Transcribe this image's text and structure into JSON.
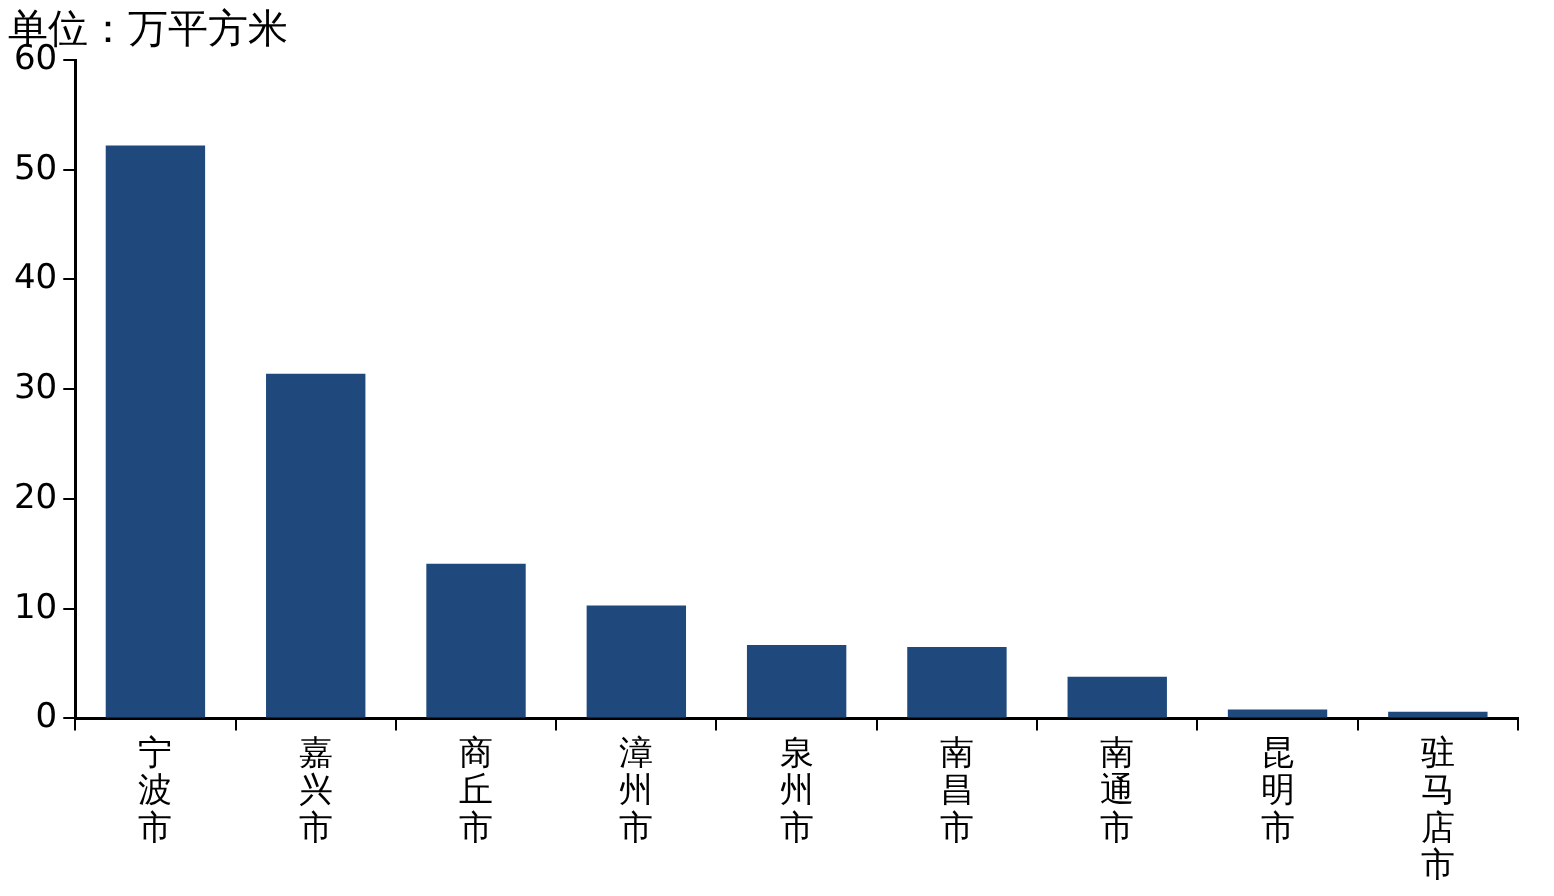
{
  "chart_data": {
    "type": "bar",
    "title": "单位：万平方米",
    "categories": [
      "宁波市",
      "嘉兴市",
      "商丘市",
      "漳州市",
      "泉州市",
      "南昌市",
      "南通市",
      "昆明市",
      "驻马店市"
    ],
    "values": [
      52.2,
      31.4,
      14.1,
      10.3,
      6.7,
      6.5,
      3.8,
      0.8,
      0.6
    ],
    "color": "#1f497d",
    "ylim": [
      0,
      60
    ],
    "yticks": [
      0,
      10,
      20,
      30,
      40,
      50,
      60
    ],
    "grid": false,
    "legend": false
  }
}
